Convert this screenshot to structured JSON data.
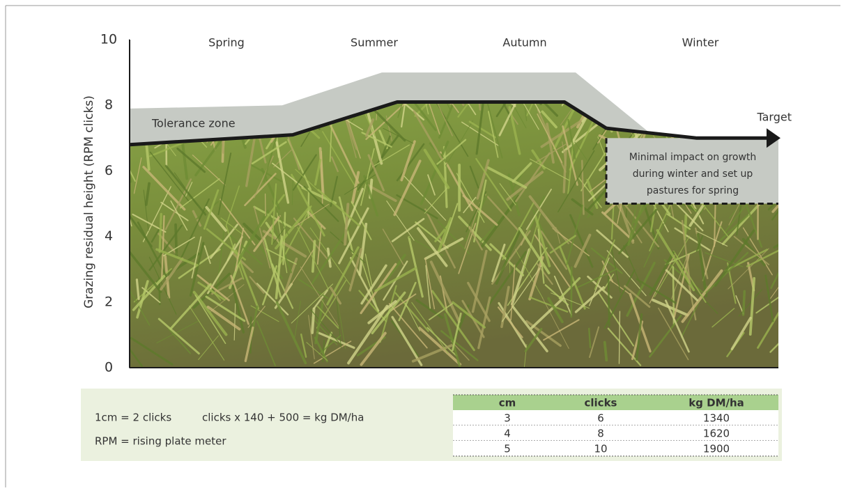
{
  "chart_data": {
    "type": "zone-line",
    "y_label": "Grazing residual height (RPM clicks)",
    "categories": [
      "Spring",
      "Summer",
      "Autumn",
      "Winter"
    ],
    "ylim": [
      0,
      10
    ],
    "yticks": [
      0,
      2,
      4,
      6,
      8,
      10
    ],
    "target_line": {
      "values": [
        6.8,
        7.1,
        8.1,
        8.1,
        7.3,
        7.0,
        7.0
      ],
      "color": "#1a1a1a"
    },
    "tolerance_upper": {
      "values": [
        7.9,
        8.0,
        9.0,
        9.0,
        7.2
      ],
      "color": "#c6cac4"
    },
    "winter_zone": {
      "values": [
        7.0,
        5.0
      ],
      "color": "#c6cac4"
    },
    "annotations": {
      "target": "Target",
      "tolerance": "Tolerance zone",
      "winter_note": [
        "Minimal impact on growth",
        "during winter and set up",
        "pastures for spring"
      ]
    },
    "notes": [
      "1cm = 2 clicks",
      "clicks x 140 + 500 = kg DM/ha",
      "RPM = rising plate meter"
    ],
    "table": {
      "header": [
        "cm",
        "clicks",
        "kg DM/ha"
      ],
      "rows": [
        [
          3,
          6,
          1340
        ],
        [
          4,
          8,
          1620
        ],
        [
          5,
          10,
          1900
        ]
      ]
    }
  }
}
